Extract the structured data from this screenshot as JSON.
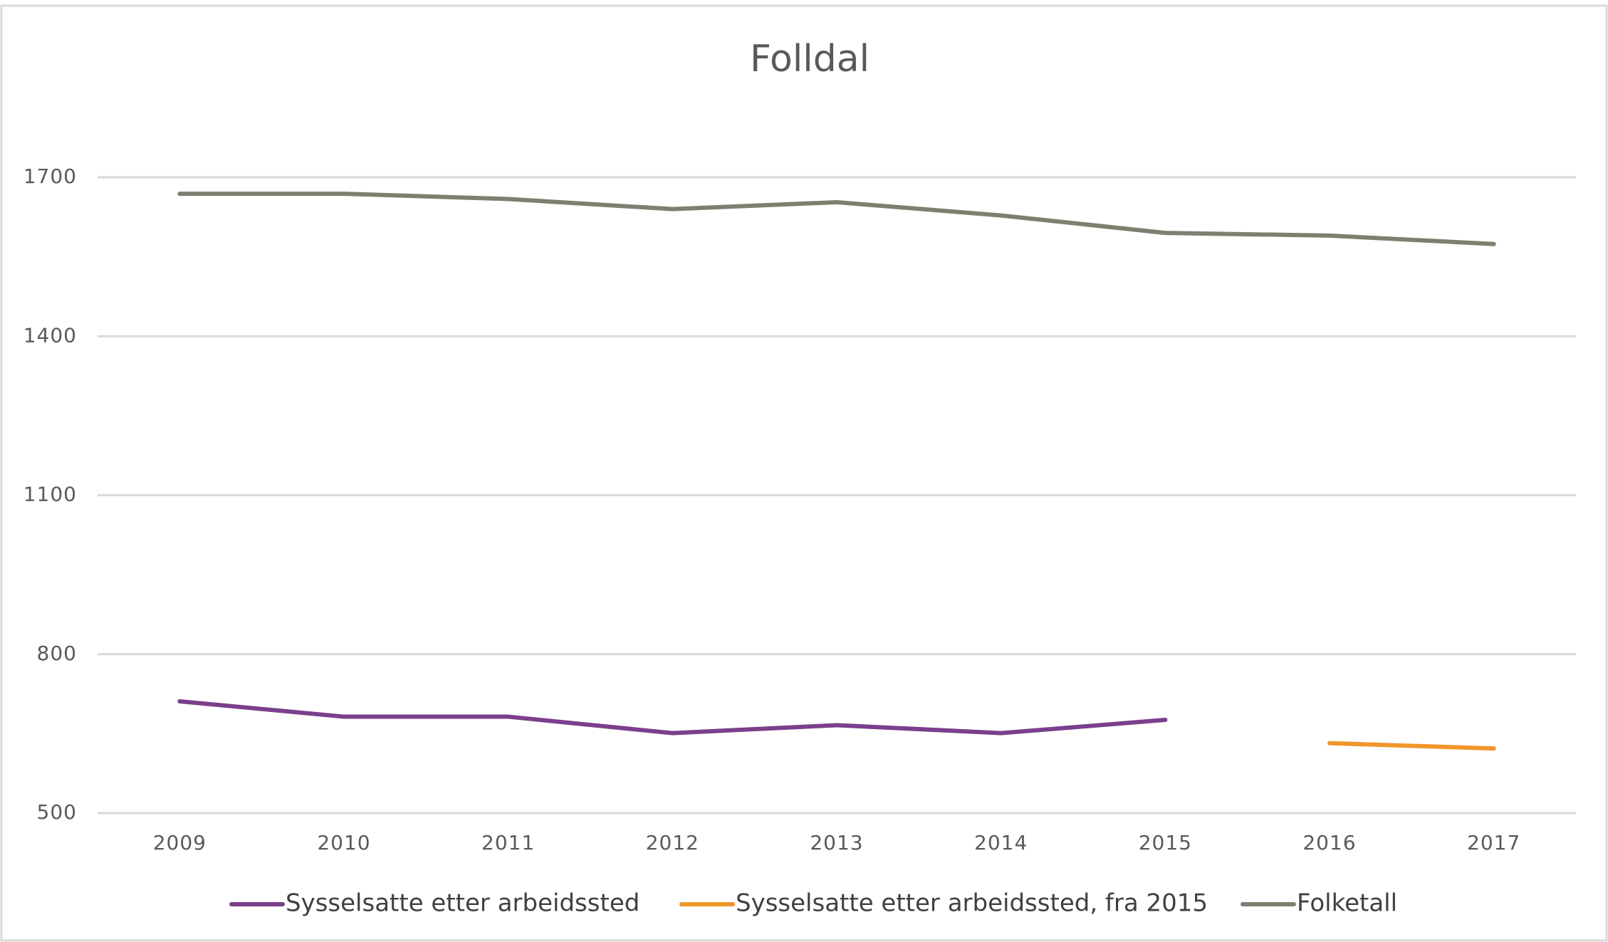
{
  "chart_data": {
    "type": "line",
    "title": "Folldal",
    "categories": [
      "2009",
      "2010",
      "2011",
      "2012",
      "2013",
      "2014",
      "2015",
      "2016",
      "2017"
    ],
    "series": [
      {
        "name": "Sysselsatte etter arbeidssted",
        "color": "#7b3f8c",
        "values": [
          711,
          682,
          682,
          651,
          666,
          651,
          676,
          null,
          null
        ]
      },
      {
        "name": "Sysselsatte etter arbeidssted, fra 2015",
        "color": "#f0962a",
        "values": [
          null,
          null,
          null,
          null,
          null,
          null,
          null,
          632,
          622
        ]
      },
      {
        "name": "Folketall",
        "color": "#7f7f6f",
        "values": [
          1669,
          1669,
          1659,
          1640,
          1653,
          1628,
          1595,
          1590,
          1574
        ]
      }
    ],
    "ylim": [
      500,
      1700
    ],
    "yticks": [
      500,
      800,
      1100,
      1400,
      1700
    ],
    "grid": true,
    "legend": "bottom"
  }
}
